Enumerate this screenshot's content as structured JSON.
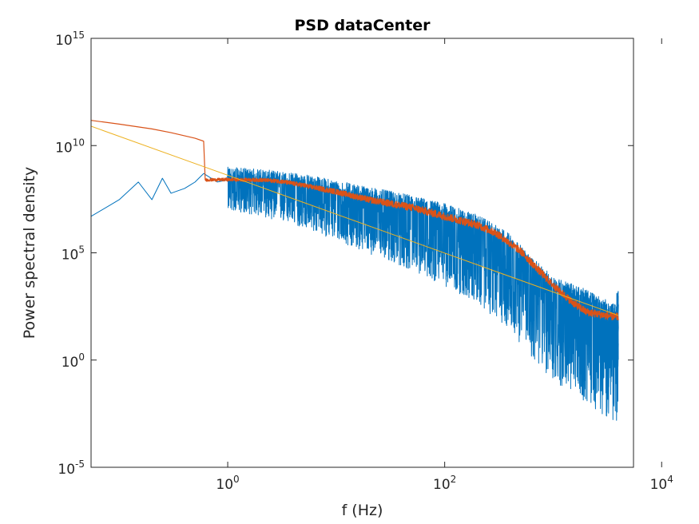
{
  "chart_data": {
    "type": "line",
    "title": "PSD dataCenter",
    "xlabel": "f (Hz)",
    "ylabel": "Power spectral density",
    "xscale": "log",
    "yscale": "log",
    "xlim": [
      0.055,
      5500
    ],
    "ylim": [
      1e-05,
      1000000000000000.0
    ],
    "x_ticks": [
      {
        "value": 1,
        "base": "10",
        "exp": "0"
      },
      {
        "value": 100,
        "base": "10",
        "exp": "2"
      },
      {
        "value": 10000,
        "base": "10",
        "exp": "4"
      }
    ],
    "y_ticks": [
      {
        "value": 1e-05,
        "base": "10",
        "exp": "-5"
      },
      {
        "value": 1,
        "base": "10",
        "exp": "0"
      },
      {
        "value": 100000.0,
        "base": "10",
        "exp": "5"
      },
      {
        "value": 10000000000.0,
        "base": "10",
        "exp": "10"
      },
      {
        "value": 1000000000000000.0,
        "base": "10",
        "exp": "15"
      }
    ],
    "grid": false,
    "series": [
      {
        "color": "#0072BD",
        "kind": "noisy raw PSD",
        "x": [
          0.055,
          0.1,
          0.15,
          0.2,
          0.25,
          0.3,
          0.4,
          0.5,
          0.6,
          0.8,
          1,
          2,
          5,
          10,
          20,
          50,
          100,
          200,
          400,
          600,
          1000,
          2000,
          4000
        ],
        "y": [
          5000000.0,
          30000000.0,
          200000000.0,
          30000000.0,
          300000000.0,
          60000000.0,
          100000000.0,
          200000000.0,
          500000000.0,
          200000000.0,
          250000000.0,
          200000000.0,
          120000000.0,
          60000000.0,
          30000000.0,
          12000000.0,
          5000000.0,
          1500000.0,
          200000.0,
          20000.0,
          2000.0,
          500.0,
          80.0
        ],
        "noise_low_decades": 1.8,
        "noise_high_decades": 0.6
      },
      {
        "color": "#D95319",
        "kind": "smoothed PSD",
        "x": [
          0.055,
          0.1,
          0.2,
          0.3,
          0.5,
          0.6,
          0.62,
          1,
          2,
          3,
          5,
          10,
          20,
          50,
          100,
          200,
          300,
          500,
          700,
          1000,
          1500,
          2000,
          3000,
          4000
        ],
        "y": [
          150000000000.0,
          100000000000.0,
          60000000000.0,
          40000000000.0,
          22000000000.0,
          16000000000.0,
          250000000.0,
          260000000.0,
          250000000.0,
          220000000.0,
          140000000.0,
          70000000.0,
          30000000.0,
          13000000.0,
          5000000.0,
          2000000.0,
          800000.0,
          120000.0,
          20000.0,
          3000.0,
          500.0,
          180.0,
          120.0,
          100.0
        ],
        "noise_low_decades": 0.18,
        "noise_high_decades": 0.18
      },
      {
        "color": "#EDB120",
        "kind": "power-law fit",
        "x": [
          0.055,
          4000
        ],
        "y": [
          80000000000.0,
          120.0
        ]
      }
    ]
  }
}
